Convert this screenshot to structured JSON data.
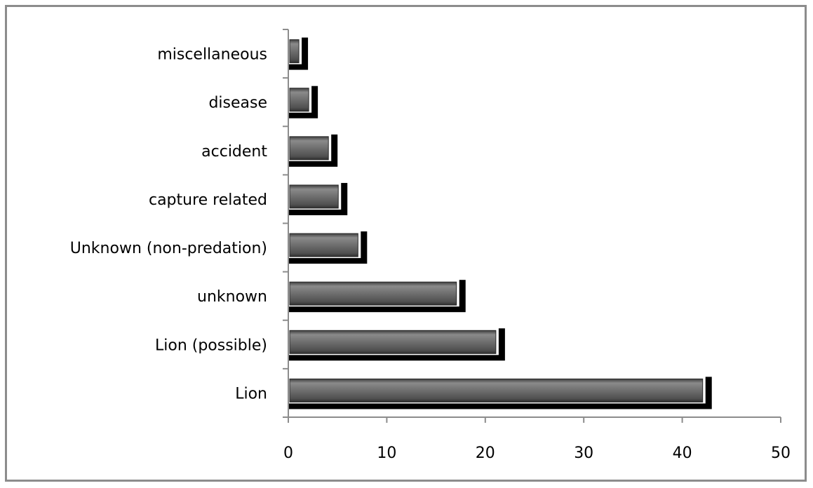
{
  "chart_data": {
    "type": "bar",
    "orientation": "horizontal",
    "title": "",
    "xlabel": "",
    "ylabel": "",
    "categories": [
      "Lion",
      "Lion (possible)",
      "unknown",
      "Unknown (non-predation)",
      "capture related",
      "accident",
      "disease",
      "miscellaneous"
    ],
    "category_labels": [
      "Lion",
      "Lion (possible)",
      "unknown",
      "Unknown (non-predation)",
      "capture related ",
      "accident",
      "disease ",
      "miscellaneous"
    ],
    "values": [
      43,
      22,
      18,
      8,
      6,
      5,
      3,
      2
    ],
    "xlim": [
      0,
      50
    ],
    "x_ticks": [
      0,
      10,
      20,
      30,
      40,
      50
    ],
    "grid": false,
    "legend": "none",
    "colors": {
      "bar_shadow": "#000000",
      "bar_fill": "#6b6b6b",
      "bar_highlight": "#ffffff",
      "axis": "#8c8c8c",
      "frame": "#8c8c8c"
    }
  }
}
